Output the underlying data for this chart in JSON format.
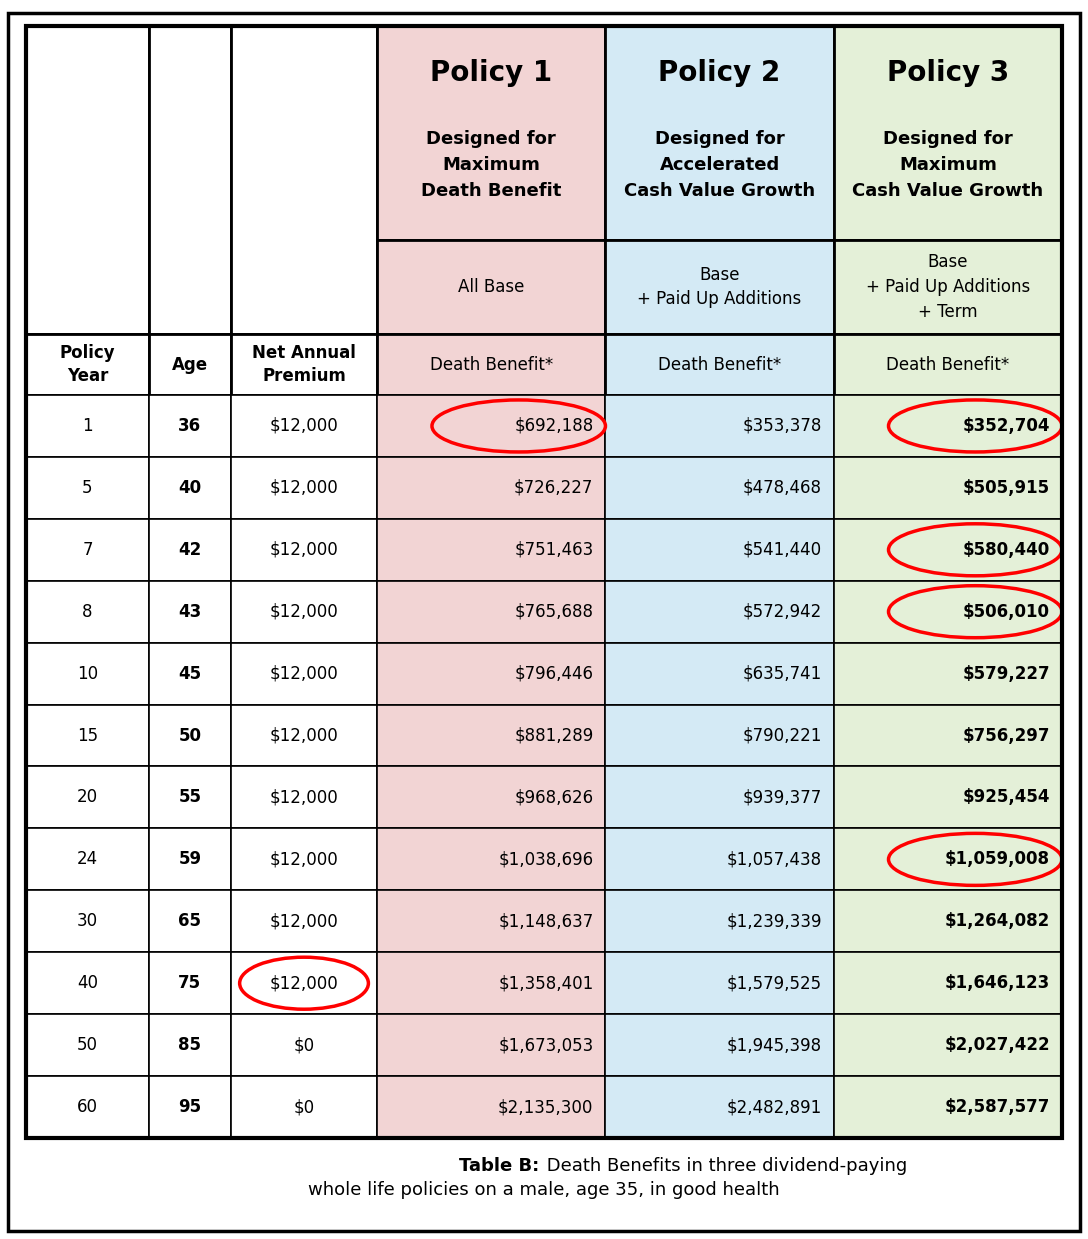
{
  "policy_headers": [
    "Policy 1",
    "Policy 2",
    "Policy 3"
  ],
  "policy_subheaders": [
    "Designed for\nMaximum\nDeath Benefit",
    "Designed for\nAccelerated\nCash Value Growth",
    "Designed for\nMaximum\nCash Value Growth"
  ],
  "policy_sub2": [
    "All Base",
    "Base\n+ Paid Up Additions",
    "Base\n+ Paid Up Additions\n+ Term"
  ],
  "col_headers_row3": [
    "Death Benefit*",
    "Death Benefit*",
    "Death Benefit*"
  ],
  "left_headers": [
    "Policy\nYear",
    "Age",
    "Net Annual\nPremium"
  ],
  "rows": [
    [
      "1",
      "36",
      "$12,000",
      "$692,188",
      "$353,378",
      "$352,704"
    ],
    [
      "5",
      "40",
      "$12,000",
      "$726,227",
      "$478,468",
      "$505,915"
    ],
    [
      "7",
      "42",
      "$12,000",
      "$751,463",
      "$541,440",
      "$580,440"
    ],
    [
      "8",
      "43",
      "$12,000",
      "$765,688",
      "$572,942",
      "$506,010"
    ],
    [
      "10",
      "45",
      "$12,000",
      "$796,446",
      "$635,741",
      "$579,227"
    ],
    [
      "15",
      "50",
      "$12,000",
      "$881,289",
      "$790,221",
      "$756,297"
    ],
    [
      "20",
      "55",
      "$12,000",
      "$968,626",
      "$939,377",
      "$925,454"
    ],
    [
      "24",
      "59",
      "$12,000",
      "$1,038,696",
      "$1,057,438",
      "$1,059,008"
    ],
    [
      "30",
      "65",
      "$12,000",
      "$1,148,637",
      "$1,239,339",
      "$1,264,082"
    ],
    [
      "40",
      "75",
      "$12,000",
      "$1,358,401",
      "$1,579,525",
      "$1,646,123"
    ],
    [
      "50",
      "85",
      "$0",
      "$1,673,053",
      "$1,945,398",
      "$2,027,422"
    ],
    [
      "60",
      "95",
      "$0",
      "$2,135,300",
      "$2,482,891",
      "$2,587,577"
    ]
  ],
  "color_p1": "#f2d4d4",
  "color_p2": "#d4eaf5",
  "color_p3": "#e4f0d8",
  "color_white": "#ffffff",
  "caption_bold": "Table B:",
  "caption_line1": " Death Benefits in three dividend-paying",
  "caption_line2": "whole life policies on a male, age 35, in good health",
  "circles": [
    {
      "row": 0,
      "col": 3
    },
    {
      "row": 0,
      "col": 5
    },
    {
      "row": 2,
      "col": 5
    },
    {
      "row": 3,
      "col": 5
    },
    {
      "row": 7,
      "col": 5
    },
    {
      "row": 9,
      "col": 2
    }
  ]
}
